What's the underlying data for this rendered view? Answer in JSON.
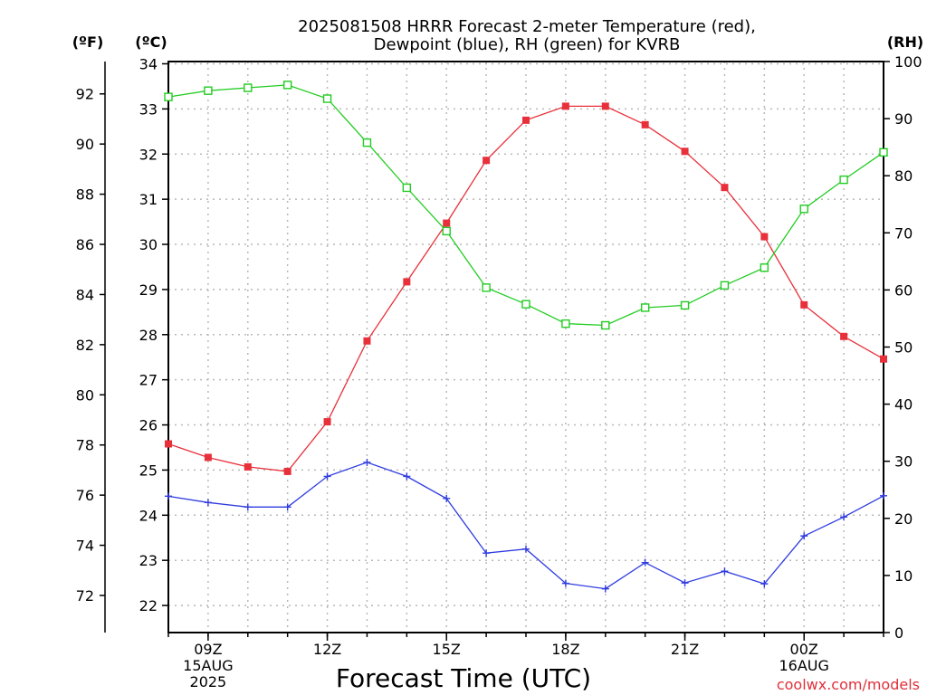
{
  "chart_data": {
    "type": "line",
    "title": [
      "2025081508 HRRR Forecast 2-meter Temperature (red),",
      "Dewpoint (blue), RH (green) for KVRB"
    ],
    "xlabel": "Forecast Time (UTC)",
    "credit": "coolwx.com/models",
    "units": {
      "left_f": "(ºF)",
      "left_c": "(ºC)",
      "right": "(RH)"
    },
    "x_hours": [
      8,
      9,
      10,
      11,
      12,
      13,
      14,
      15,
      16,
      17,
      18,
      19,
      20,
      21,
      22,
      23,
      24,
      25,
      26
    ],
    "x_ticks": [
      {
        "hour": 9,
        "lines": [
          "09Z",
          "15AUG",
          "2025"
        ]
      },
      {
        "hour": 12,
        "lines": [
          "12Z"
        ]
      },
      {
        "hour": 15,
        "lines": [
          "15Z"
        ]
      },
      {
        "hour": 18,
        "lines": [
          "18Z"
        ]
      },
      {
        "hour": 21,
        "lines": [
          "21Z"
        ]
      },
      {
        "hour": 24,
        "lines": [
          "00Z",
          "16AUG"
        ]
      }
    ],
    "xlim": [
      8,
      26
    ],
    "celsius_axis": {
      "ylim": [
        21.4,
        34.05
      ],
      "ticks": [
        22,
        23,
        24,
        25,
        26,
        27,
        28,
        29,
        30,
        31,
        32,
        33,
        34
      ]
    },
    "fahrenheit_ticks": [
      72,
      74,
      76,
      78,
      80,
      82,
      84,
      86,
      88,
      90,
      92
    ],
    "rh_axis": {
      "ylim": [
        0,
        100
      ],
      "ticks": [
        0,
        10,
        20,
        30,
        40,
        50,
        60,
        70,
        80,
        90,
        100
      ]
    },
    "grid": true,
    "series": [
      {
        "axis": "celsius",
        "color": "#e8303a",
        "marker": "filled-square",
        "values": [
          25.58,
          25.28,
          25.07,
          24.97,
          26.07,
          27.86,
          29.17,
          30.47,
          31.86,
          32.75,
          33.06,
          33.06,
          32.65,
          32.06,
          31.26,
          30.17,
          28.66,
          27.96,
          27.46
        ]
      },
      {
        "axis": "celsius",
        "color": "#2f3be0",
        "marker": "plus",
        "values": [
          24.42,
          24.28,
          24.18,
          24.18,
          24.86,
          25.17,
          24.86,
          24.37,
          23.16,
          23.25,
          22.49,
          22.37,
          22.95,
          22.5,
          22.76,
          22.48,
          23.54,
          23.96,
          24.43
        ]
      },
      {
        "axis": "rh",
        "color": "#22cc22",
        "marker": "open-square",
        "values": [
          93.8,
          94.9,
          95.4,
          95.9,
          93.5,
          85.8,
          77.9,
          70.3,
          60.4,
          57.5,
          54.1,
          53.8,
          56.9,
          57.3,
          60.8,
          63.9,
          74.2,
          79.3,
          84.1
        ]
      }
    ]
  }
}
